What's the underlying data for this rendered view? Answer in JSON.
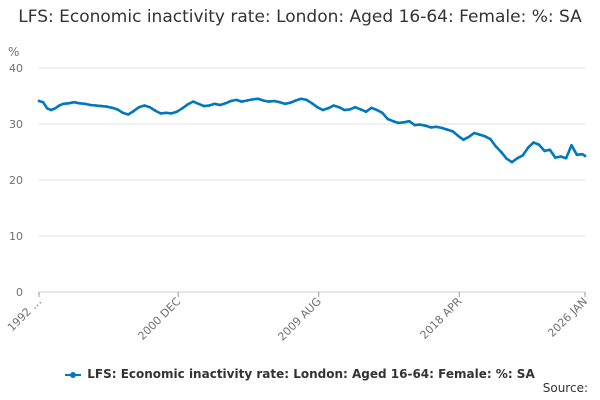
{
  "chart_data": {
    "type": "line",
    "title": "LFS: Economic inactivity rate: London: Aged 16-64: Female: %: SA",
    "ylabel": "%",
    "xlabel": "",
    "ylim": [
      0,
      40
    ],
    "yticks": [
      0,
      10,
      20,
      30,
      40
    ],
    "xticks": [
      {
        "label": "1992 …",
        "date": "1992-05"
      },
      {
        "label": "2000 DEC",
        "date": "2000-12"
      },
      {
        "label": "2009 AUG",
        "date": "2009-08"
      },
      {
        "label": "2018 APR",
        "date": "2018-04"
      },
      {
        "label": "2026 JAN",
        "date": "2026-01"
      }
    ],
    "grid": true,
    "legend_position": "bottom",
    "series": [
      {
        "name": "LFS: Economic inactivity rate: London: Aged 16-64: Female: %: SA",
        "color": "#0077be",
        "points": [
          [
            "1992-05",
            34.1
          ],
          [
            "1992-08",
            33.9
          ],
          [
            "1992-11",
            32.8
          ],
          [
            "1993-02",
            32.5
          ],
          [
            "1993-05",
            32.8
          ],
          [
            "1993-08",
            33.3
          ],
          [
            "1993-11",
            33.6
          ],
          [
            "1994-03",
            33.7
          ],
          [
            "1994-07",
            33.9
          ],
          [
            "1994-11",
            33.7
          ],
          [
            "1995-03",
            33.6
          ],
          [
            "1995-07",
            33.4
          ],
          [
            "1995-11",
            33.3
          ],
          [
            "1996-03",
            33.2
          ],
          [
            "1996-07",
            33.1
          ],
          [
            "1996-11",
            32.9
          ],
          [
            "1997-03",
            32.6
          ],
          [
            "1997-07",
            32.0
          ],
          [
            "1997-11",
            31.7
          ],
          [
            "1998-03",
            32.3
          ],
          [
            "1998-07",
            33.0
          ],
          [
            "1998-11",
            33.3
          ],
          [
            "1999-03",
            33.0
          ],
          [
            "1999-07",
            32.4
          ],
          [
            "1999-11",
            31.9
          ],
          [
            "2000-03",
            32.0
          ],
          [
            "2000-07",
            31.9
          ],
          [
            "2000-11",
            32.2
          ],
          [
            "2001-03",
            32.8
          ],
          [
            "2001-07",
            33.5
          ],
          [
            "2001-11",
            34.0
          ],
          [
            "2002-03",
            33.6
          ],
          [
            "2002-07",
            33.2
          ],
          [
            "2002-11",
            33.3
          ],
          [
            "2003-03",
            33.6
          ],
          [
            "2003-07",
            33.4
          ],
          [
            "2003-11",
            33.7
          ],
          [
            "2004-03",
            34.1
          ],
          [
            "2004-07",
            34.3
          ],
          [
            "2004-11",
            34.0
          ],
          [
            "2005-03",
            34.2
          ],
          [
            "2005-07",
            34.4
          ],
          [
            "2005-11",
            34.5
          ],
          [
            "2006-03",
            34.2
          ],
          [
            "2006-07",
            34.0
          ],
          [
            "2006-11",
            34.1
          ],
          [
            "2007-03",
            33.9
          ],
          [
            "2007-07",
            33.6
          ],
          [
            "2007-11",
            33.8
          ],
          [
            "2008-03",
            34.2
          ],
          [
            "2008-07",
            34.5
          ],
          [
            "2008-11",
            34.3
          ],
          [
            "2009-03",
            33.7
          ],
          [
            "2009-07",
            33.0
          ],
          [
            "2009-11",
            32.5
          ],
          [
            "2010-03",
            32.8
          ],
          [
            "2010-07",
            33.3
          ],
          [
            "2010-11",
            33.0
          ],
          [
            "2011-03",
            32.5
          ],
          [
            "2011-07",
            32.6
          ],
          [
            "2011-11",
            33.0
          ],
          [
            "2012-03",
            32.6
          ],
          [
            "2012-07",
            32.2
          ],
          [
            "2012-11",
            32.9
          ],
          [
            "2013-03",
            32.5
          ],
          [
            "2013-07",
            32.0
          ],
          [
            "2013-11",
            30.9
          ],
          [
            "2014-03",
            30.5
          ],
          [
            "2014-07",
            30.2
          ],
          [
            "2014-11",
            30.3
          ],
          [
            "2015-03",
            30.5
          ],
          [
            "2015-07",
            29.8
          ],
          [
            "2015-11",
            29.9
          ],
          [
            "2016-03",
            29.7
          ],
          [
            "2016-07",
            29.4
          ],
          [
            "2016-11",
            29.5
          ],
          [
            "2017-03",
            29.3
          ],
          [
            "2017-07",
            29.0
          ],
          [
            "2017-11",
            28.7
          ],
          [
            "2018-03",
            27.9
          ],
          [
            "2018-07",
            27.2
          ],
          [
            "2018-11",
            27.7
          ],
          [
            "2019-03",
            28.4
          ],
          [
            "2019-07",
            28.1
          ],
          [
            "2019-11",
            27.8
          ],
          [
            "2020-03",
            27.3
          ],
          [
            "2020-07",
            26.0
          ],
          [
            "2020-11",
            25.0
          ],
          [
            "2021-03",
            23.8
          ],
          [
            "2021-07",
            23.2
          ],
          [
            "2021-11",
            23.9
          ],
          [
            "2022-03",
            24.4
          ],
          [
            "2022-07",
            25.8
          ],
          [
            "2022-11",
            26.7
          ],
          [
            "2023-03",
            26.3
          ],
          [
            "2023-07",
            25.2
          ],
          [
            "2023-11",
            25.4
          ],
          [
            "2024-03",
            24.0
          ],
          [
            "2024-07",
            24.2
          ],
          [
            "2024-11",
            23.9
          ],
          [
            "2025-03",
            26.2
          ],
          [
            "2025-07",
            24.5
          ],
          [
            "2025-11",
            24.6
          ],
          [
            "2026-01",
            24.3
          ]
        ]
      }
    ]
  },
  "source_label": "Source:"
}
